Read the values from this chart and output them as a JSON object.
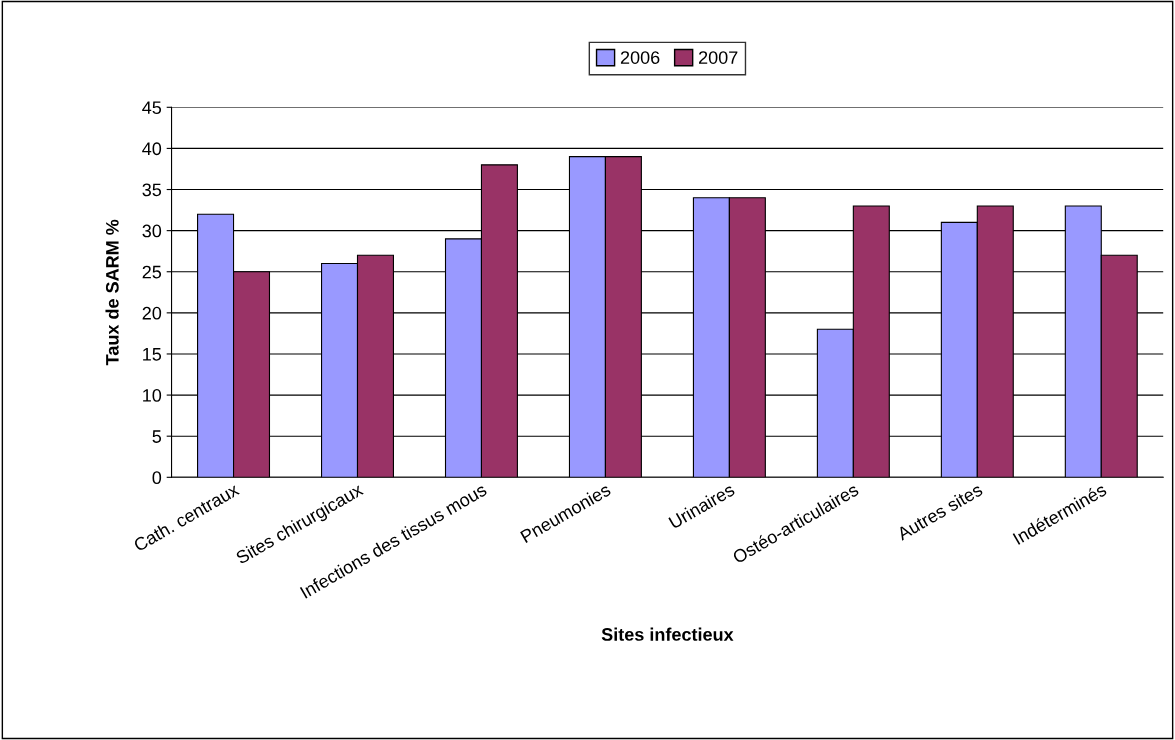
{
  "chart_data": {
    "type": "bar",
    "xlabel": "Sites infectieux",
    "ylabel": "Taux de SARM %",
    "categories": [
      "Cath. centraux",
      "Sites chirurgicaux",
      "Infections des tissus mous",
      "Pneumonies",
      "Urinaires",
      "Ostéo-articulaires",
      "Autres sites",
      "Indéterminés"
    ],
    "series": [
      {
        "name": "2006",
        "color": "#9999ff",
        "values": [
          32,
          26,
          29,
          39,
          34,
          18,
          31,
          33
        ]
      },
      {
        "name": "2007",
        "color": "#993366",
        "values": [
          25,
          27,
          38,
          39,
          34,
          33,
          33,
          27
        ]
      }
    ],
    "ylim": [
      0,
      45
    ],
    "yticks": [
      0,
      5,
      10,
      15,
      20,
      25,
      30,
      35,
      40,
      45
    ],
    "grid": "y",
    "legend": "top"
  }
}
